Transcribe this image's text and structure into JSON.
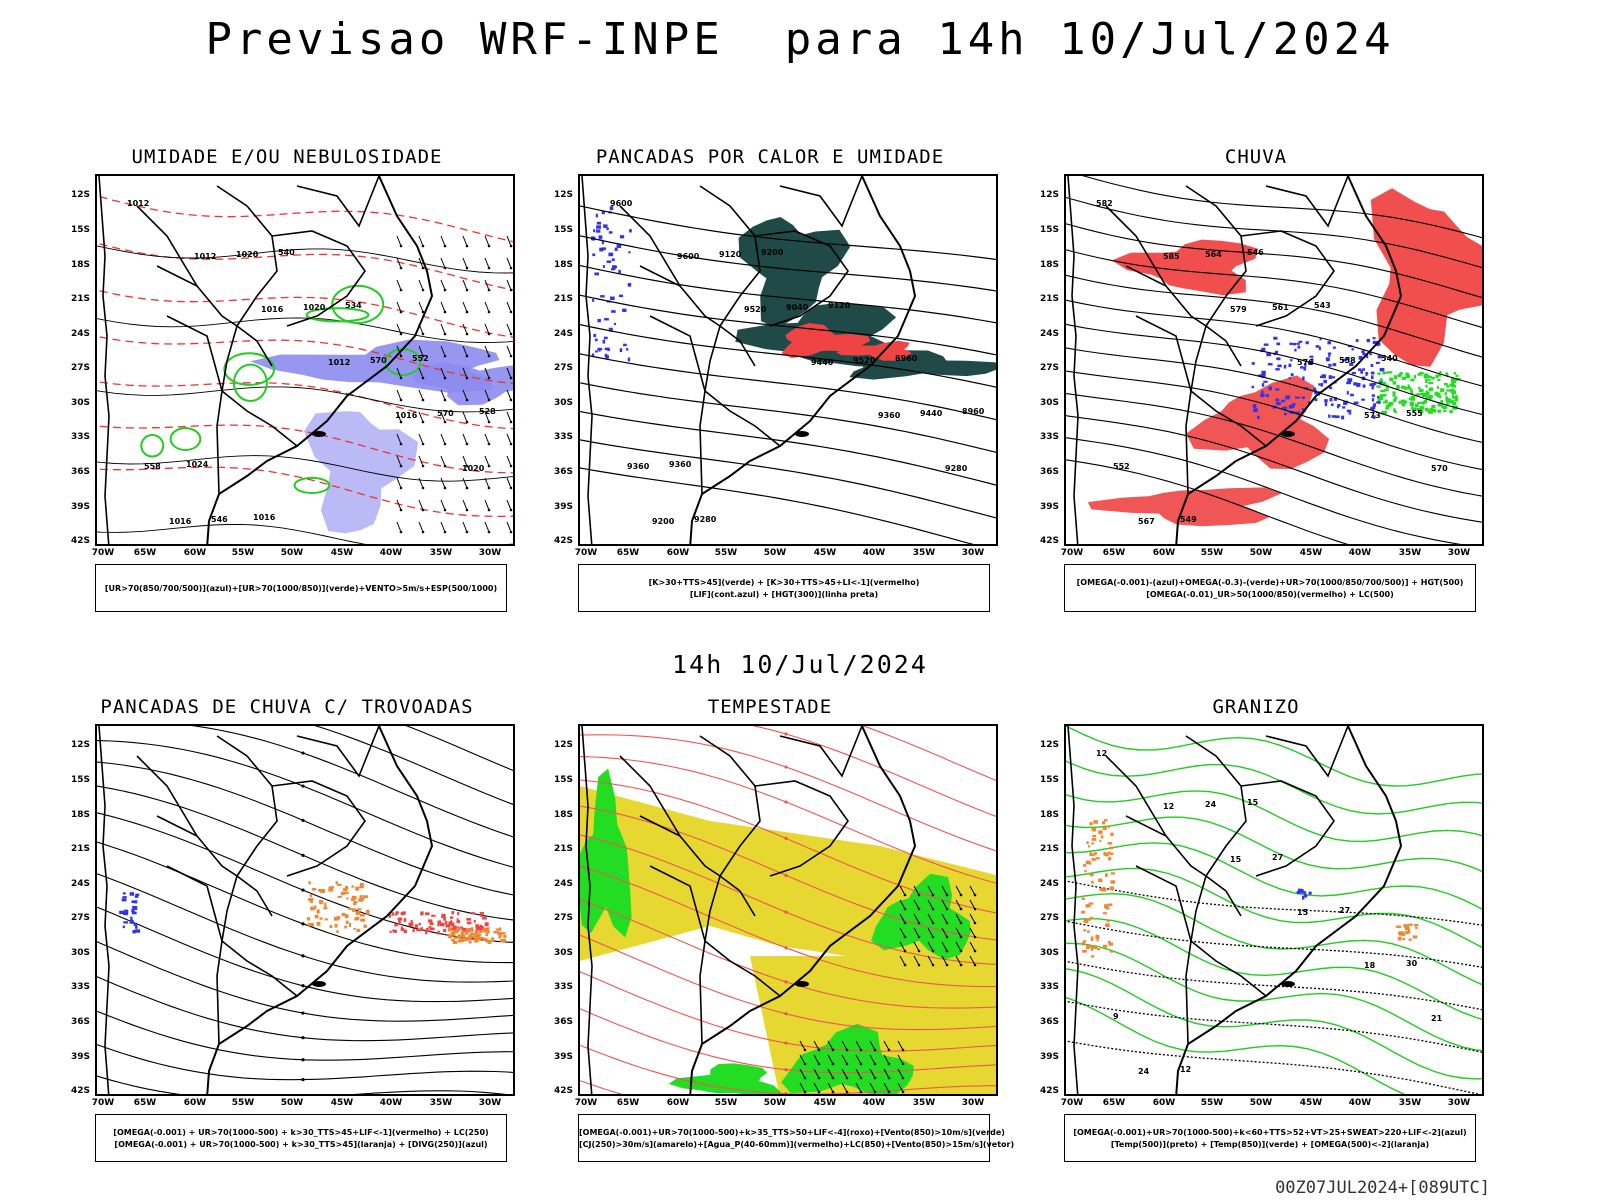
{
  "header": {
    "title": "Previsao WRF-INPE  para 14h 10/Jul/2024"
  },
  "mid": {
    "date_label": "14h 10/Jul/2024"
  },
  "footer": {
    "run_stamp": "00Z07JUL2024+[089UTC]"
  },
  "axes": {
    "lat_labels": [
      "12S",
      "15S",
      "18S",
      "21S",
      "24S",
      "27S",
      "30S",
      "33S",
      "36S",
      "39S",
      "42S"
    ],
    "lon_labels": [
      "70W",
      "65W",
      "60W",
      "55W",
      "50W",
      "45W",
      "40W",
      "35W",
      "30W"
    ]
  },
  "colors": {
    "blue_fill": "#8c8cf0",
    "green_line": "#22cc22",
    "red_dash": "#ee3333",
    "dark_teal": "#1f4a48",
    "red_fill": "#f04444",
    "blue_dot": "#3333ee",
    "green_fill": "#22dd22",
    "orange": "#ee8833",
    "yellow": "#e6d830",
    "pink_line": "#ee5555"
  },
  "panels": [
    {
      "id": "umidade",
      "title": "UMIDADE E/OU NEBULOSIDADE",
      "legend": [
        "[UR>70(850/700/500)](azul)+[UR>70(1000/850)](verde)+VENTO>5m/s+ESP(500/1000)"
      ],
      "labels": [
        "1012",
        "1012",
        "1016",
        "1012",
        "1016",
        "1020",
        "1016",
        "1020",
        "1020",
        "570",
        "570",
        "558",
        "546",
        "540",
        "534",
        "552",
        "528",
        "1024",
        "1016"
      ]
    },
    {
      "id": "pancadas_calor",
      "title": "PANCADAS POR CALOR E UMIDADE",
      "legend": [
        "[K>30+TTS>45](verde) + [K>30+TTS>45+LI<-1](vermelho)",
        "[LIF](cont.azul) + [HGT(300)](linha preta)"
      ],
      "labels": [
        "9600",
        "9600",
        "9520",
        "9440",
        "9360",
        "9280",
        "9200",
        "9120",
        "9040",
        "9520",
        "9440",
        "9360",
        "9280",
        "9200",
        "9120",
        "8960",
        "8960",
        "9360"
      ]
    },
    {
      "id": "chuva",
      "title": "CHUVA",
      "legend": [
        "[OMEGA(-0.001)-(azul)+OMEGA(-0.3)-(verde)+UR>70(1000/850/700/500)] + HGT(500)",
        "[OMEGA(-0.01)_UR>50(1000/850)(vermelho) + LC(500)"
      ],
      "labels": [
        "582",
        "585",
        "579",
        "576",
        "573",
        "570",
        "567",
        "564",
        "561",
        "558",
        "555",
        "552",
        "549",
        "546",
        "543",
        "540"
      ]
    },
    {
      "id": "pancadas_trovoadas",
      "title": "PANCADAS DE CHUVA C/ TROVOADAS",
      "legend": [
        "[OMEGA(-0.001) + UR>70(1000-500) + k>30_TTS>45+LIF<-1](vermelho) + LC(250)",
        "[OMEGA(-0.001) + UR>70(1000-500) + k>30_TTS>45](laranja) + [DIVG(250)](azul)"
      ],
      "labels": []
    },
    {
      "id": "tempestade",
      "title": "TEMPESTADE",
      "legend": [
        "[OMEGA(-0.001)+UR>70(1000-500)+k>35_TTS>50+LIF<-4](roxo)+[Vento(850)>10m/s](verde)",
        "[CJ(250)>30m/s](amarelo)+[Agua_P(40-60mm)](vermelho)+LC(850)+[Vento(850)>15m/s](vetor)"
      ],
      "labels": []
    },
    {
      "id": "granizo",
      "title": "GRANIZO",
      "legend": [
        "[OMEGA(-0.001)+UR>70(1000-500)+k<60+TTS>52+VT>25+SWEAT>220+LIF<-2](azul)",
        "[Temp(500)](preto) + [Temp(850)](verde) + [OMEGA(500)<-2](laranja)"
      ],
      "labels": [
        "12",
        "12",
        "15",
        "15",
        "18",
        "21",
        "24",
        "24",
        "27",
        "27",
        "30",
        "9",
        "12",
        "15"
      ]
    }
  ]
}
